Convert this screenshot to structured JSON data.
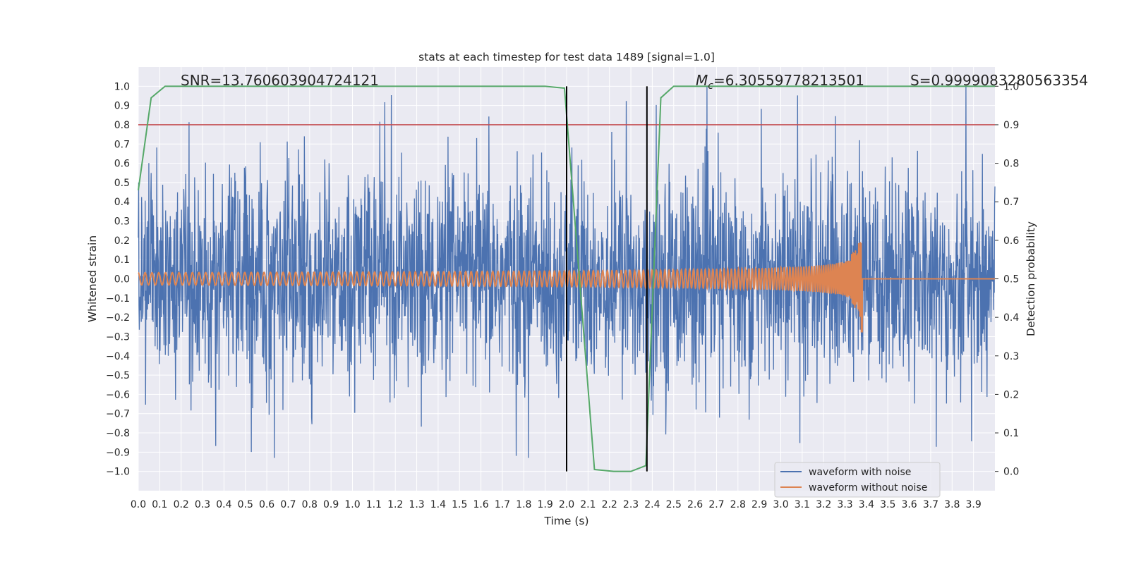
{
  "chart_data": {
    "type": "line",
    "title": "stats at each timestep for test data 1489 [signal=1.0]",
    "xlabel": "Time (s)",
    "ylabel": "Whitened strain",
    "y2label": "Detection probability",
    "xlim": [
      0.0,
      4.0
    ],
    "ylim": [
      -1.1,
      1.1
    ],
    "y2lim": [
      -0.05,
      1.05
    ],
    "xticks": [
      "0.0",
      "0.1",
      "0.2",
      "0.3",
      "0.4",
      "0.5",
      "0.6",
      "0.7",
      "0.8",
      "0.9",
      "1.0",
      "1.1",
      "1.2",
      "1.3",
      "1.4",
      "1.5",
      "1.6",
      "1.7",
      "1.8",
      "1.9",
      "2.0",
      "2.1",
      "2.2",
      "2.3",
      "2.4",
      "2.5",
      "2.6",
      "2.7",
      "2.8",
      "2.9",
      "3.0",
      "3.1",
      "3.2",
      "3.3",
      "3.4",
      "3.5",
      "3.6",
      "3.7",
      "3.8",
      "3.9"
    ],
    "yticks": [
      "1.0",
      "0.9",
      "0.8",
      "0.7",
      "0.6",
      "0.5",
      "0.4",
      "0.3",
      "0.2",
      "0.1",
      "0.0",
      "−0.1",
      "−0.2",
      "−0.3",
      "−0.4",
      "−0.5",
      "−0.6",
      "−0.7",
      "−0.8",
      "−0.9",
      "−1.0"
    ],
    "y2ticks": [
      "1.0",
      "0.9",
      "0.8",
      "0.7",
      "0.6",
      "0.5",
      "0.4",
      "0.3",
      "0.2",
      "0.1",
      "0.0"
    ],
    "grid": true,
    "legend_position": "lower-right",
    "annotations": {
      "snr": "SNR=13.760603904724121",
      "mc": "=6.30559778213501",
      "mc_symbol": "M",
      "mc_sub": "c",
      "s": "S=0.9999083280563354"
    },
    "colors": {
      "noise": "#4c72b0",
      "clean": "#dd8452",
      "probability": "#55a868",
      "threshold": "#c44e52",
      "markers": "#000000",
      "plot_bg": "#eaeaf2",
      "grid": "#ffffff"
    },
    "series": [
      {
        "name": "waveform with noise",
        "description": "noisy whitened strain, dense random signal spanning roughly -0.93 to 1.0",
        "value_range": [
          -0.93,
          1.0
        ]
      },
      {
        "name": "waveform without noise",
        "description": "chirp waveform, amplitude growing from ~0.03 to ~0.29, merger near 3.38 s, zero after",
        "merger_time": 3.38,
        "peak_amplitude": 0.29
      },
      {
        "name": "detection probability",
        "axis": "right",
        "x": [
          0.0,
          0.06,
          0.125,
          1.25,
          1.9,
          1.99,
          2.13,
          2.22,
          2.3,
          2.37,
          2.44,
          2.5,
          3.5,
          4.0
        ],
        "y": [
          0.73,
          0.97,
          1.0,
          1.0,
          1.0,
          0.995,
          0.005,
          0.0,
          0.0,
          0.015,
          0.97,
          1.0,
          1.0,
          1.0
        ]
      }
    ],
    "threshold_line": {
      "y": 0.8
    },
    "vertical_markers": [
      2.0,
      2.375
    ],
    "legend": [
      "waveform with noise",
      "waveform without noise"
    ]
  }
}
